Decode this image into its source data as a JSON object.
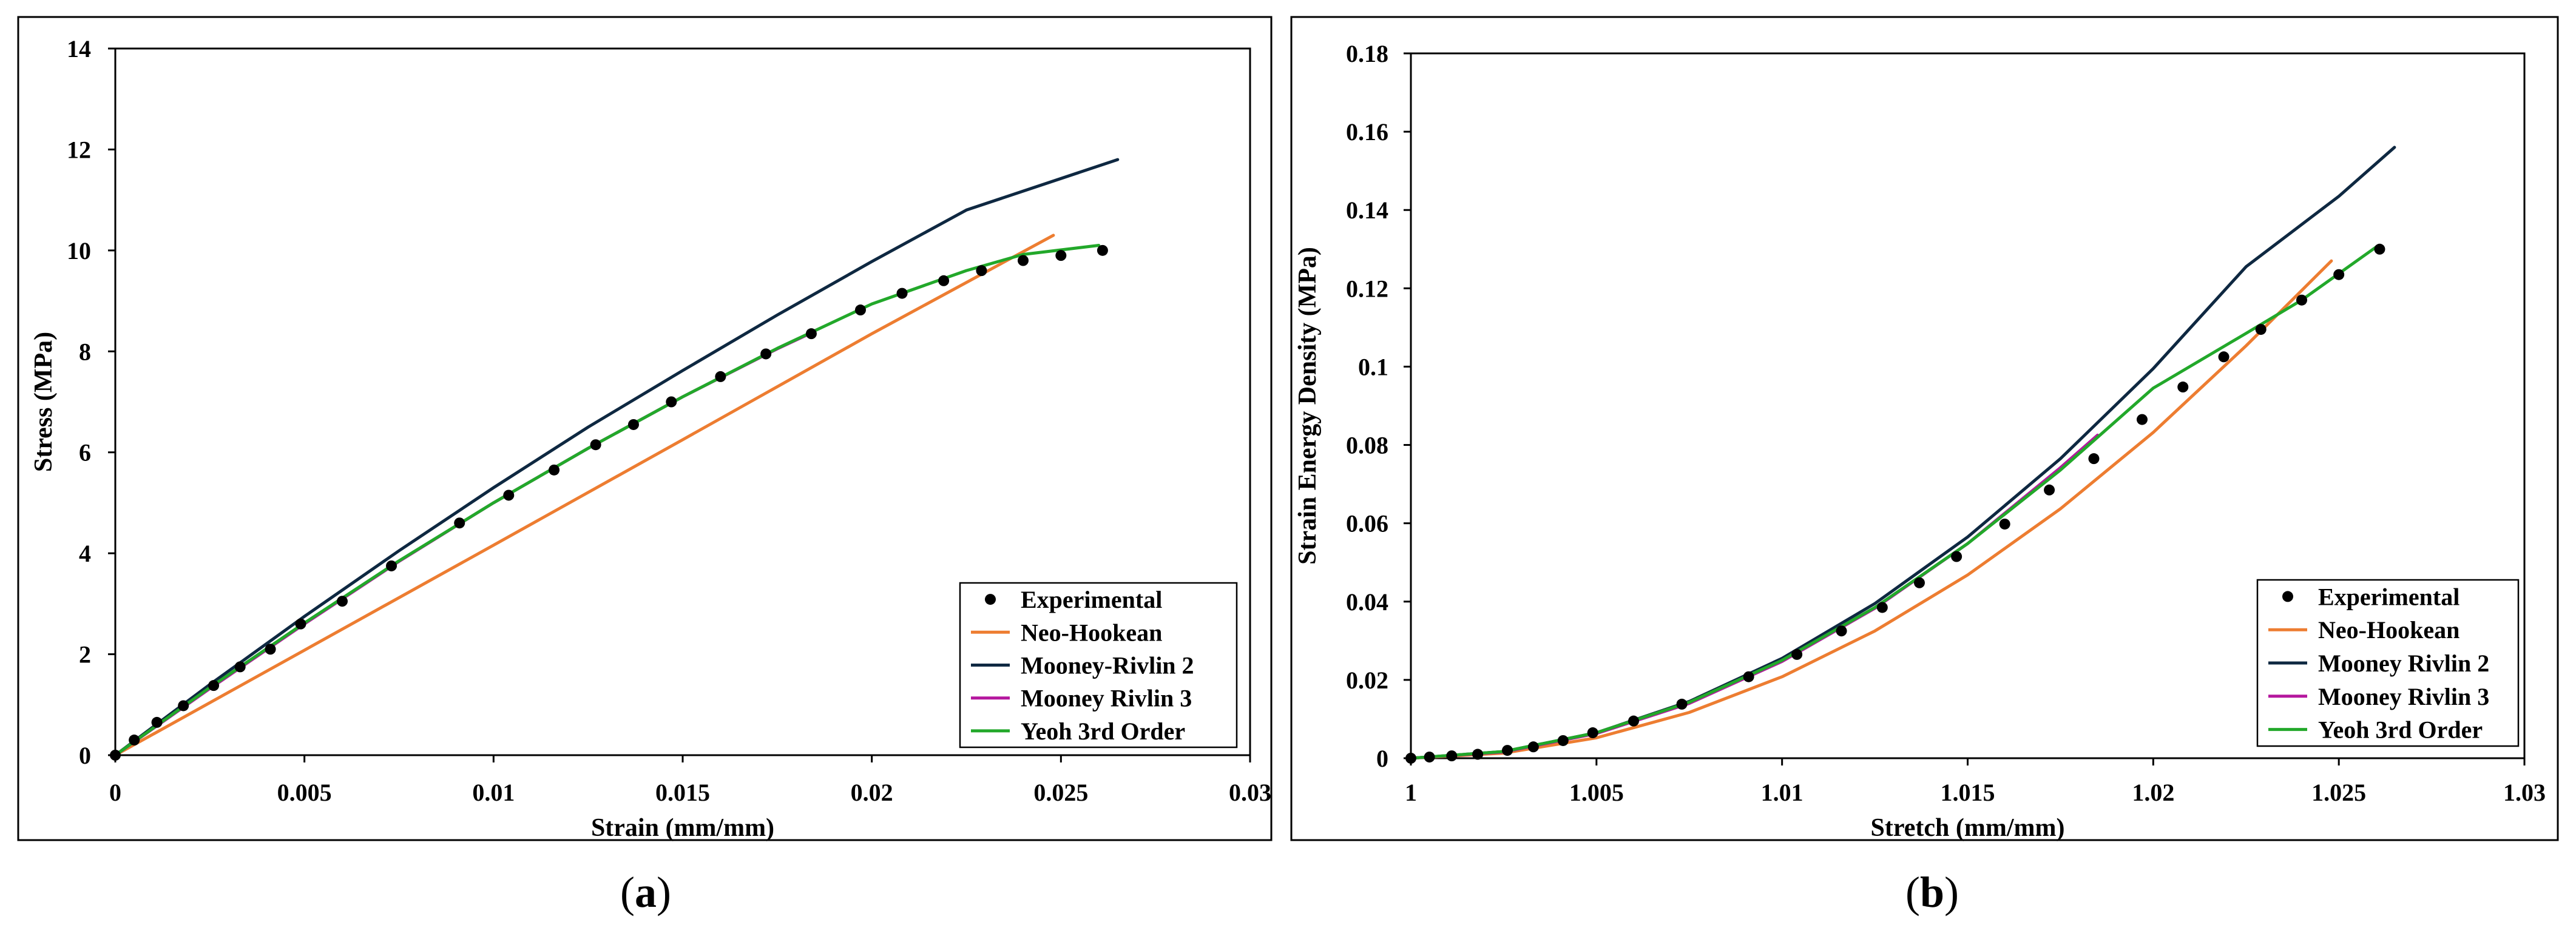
{
  "colors": {
    "experimental": "#000000",
    "neo_hookean": "#ED7D31",
    "mooney_rivlin_2": "#0E2841",
    "mooney_rivlin_3": "#B5179E",
    "yeoh": "#22A82A",
    "frame": "#000000"
  },
  "panel_labels": [
    "a",
    "b"
  ],
  "chart_data": [
    {
      "type": "line",
      "panel": "a",
      "title": "",
      "xlabel": "Strain (mm/mm)",
      "ylabel": "Stress (MPa)",
      "xlim": [
        0,
        0.03
      ],
      "ylim": [
        0,
        14
      ],
      "xticks": [
        0,
        0.005,
        0.01,
        0.015,
        0.02,
        0.025,
        0.03
      ],
      "xtick_labels": [
        "0",
        "0.005",
        "0.01",
        "0.015",
        "0.02",
        "0.025",
        "0.03"
      ],
      "yticks": [
        0,
        2,
        4,
        6,
        8,
        10,
        12,
        14
      ],
      "ytick_labels": [
        "0",
        "2",
        "4",
        "6",
        "8",
        "10",
        "12",
        "14"
      ],
      "legend_position": "bottom-right",
      "legend": [
        "Experimental",
        "Neo-Hookean",
        "Mooney-Rivlin 2",
        "Mooney Rivlin 3",
        "Yeoh 3rd Order"
      ],
      "series": [
        {
          "name": "Experimental",
          "kind": "scatter",
          "color_key": "experimental",
          "x": [
            0,
            0.0005,
            0.0011,
            0.0018,
            0.0026,
            0.0033,
            0.0041,
            0.0049,
            0.006,
            0.0073,
            0.0091,
            0.0104,
            0.0116,
            0.0127,
            0.0137,
            0.0147,
            0.016,
            0.0172,
            0.0184,
            0.0197,
            0.0208,
            0.0219,
            0.0229,
            0.024,
            0.025,
            0.0261
          ],
          "y": [
            0,
            0.3,
            0.65,
            0.98,
            1.38,
            1.75,
            2.1,
            2.6,
            3.05,
            3.75,
            4.6,
            5.15,
            5.65,
            6.15,
            6.55,
            7.0,
            7.5,
            7.95,
            8.35,
            8.82,
            9.15,
            9.4,
            9.6,
            9.8,
            9.9,
            10.0
          ]
        },
        {
          "name": "Neo-Hookean",
          "kind": "line",
          "color_key": "neo_hookean",
          "x": [
            0,
            0.005,
            0.01,
            0.015,
            0.02,
            0.0248
          ],
          "y": [
            0,
            2.08,
            4.16,
            6.25,
            8.35,
            10.3
          ]
        },
        {
          "name": "Mooney-Rivlin 2",
          "kind": "line",
          "color_key": "mooney_rivlin_2",
          "x": [
            0,
            0.0025,
            0.005,
            0.0075,
            0.01,
            0.0125,
            0.015,
            0.0175,
            0.02,
            0.0225,
            0.0265
          ],
          "y": [
            0,
            1.4,
            2.75,
            4.05,
            5.3,
            6.5,
            7.62,
            8.72,
            9.78,
            10.8,
            11.8
          ]
        },
        {
          "name": "Mooney Rivlin 3",
          "kind": "line",
          "color_key": "mooney_rivlin_3",
          "x": [
            0,
            0.0025,
            0.005,
            0.0075,
            0.01,
            0.0125,
            0.015,
            0.0175,
            0.0185
          ],
          "y": [
            0,
            1.32,
            2.6,
            3.84,
            5.0,
            6.08,
            7.1,
            8.05,
            8.4
          ]
        },
        {
          "name": "Yeoh 3rd Order",
          "kind": "line",
          "color_key": "yeoh",
          "x": [
            0,
            0.0025,
            0.005,
            0.0075,
            0.01,
            0.0125,
            0.015,
            0.0175,
            0.02,
            0.0225,
            0.024,
            0.026
          ],
          "y": [
            0,
            1.34,
            2.62,
            3.85,
            5.0,
            6.08,
            7.1,
            8.06,
            8.94,
            9.6,
            9.92,
            10.1
          ]
        }
      ]
    },
    {
      "type": "line",
      "panel": "b",
      "title": "",
      "xlabel": "Stretch (mm/mm)",
      "ylabel": "Strain Energy Density (MPa)",
      "xlim": [
        1,
        1.03
      ],
      "ylim": [
        0,
        0.18
      ],
      "xticks": [
        1,
        1.005,
        1.01,
        1.015,
        1.02,
        1.025,
        1.03
      ],
      "xtick_labels": [
        "1",
        "1.005",
        "1.01",
        "1.015",
        "1.02",
        "1.025",
        "1.03"
      ],
      "yticks": [
        0,
        0.02,
        0.04,
        0.06,
        0.08,
        0.1,
        0.12,
        0.14,
        0.16,
        0.18
      ],
      "ytick_labels": [
        "0",
        "0.02",
        "0.04",
        "0.06",
        "0.08",
        "0.1",
        "0.12",
        "0.14",
        "0.16",
        "0.18"
      ],
      "legend_position": "bottom-right",
      "legend": [
        "Experimental",
        "Neo-Hookean",
        "Mooney Rivlin 2",
        "Mooney Rivlin 3",
        "Yeoh 3rd Order"
      ],
      "series": [
        {
          "name": "Experimental",
          "kind": "scatter",
          "color_key": "experimental",
          "x": [
            1,
            1.0005,
            1.0011,
            1.0018,
            1.0026,
            1.0033,
            1.0041,
            1.0049,
            1.006,
            1.0073,
            1.0091,
            1.0104,
            1.0116,
            1.0127,
            1.0137,
            1.0147,
            1.016,
            1.0172,
            1.0184,
            1.0197,
            1.0208,
            1.0219,
            1.0229,
            1.024,
            1.025,
            1.0261
          ],
          "y": [
            0,
            0.0003,
            0.0006,
            0.001,
            0.002,
            0.0029,
            0.0045,
            0.0065,
            0.0095,
            0.0138,
            0.0208,
            0.0265,
            0.0325,
            0.0385,
            0.0448,
            0.0515,
            0.0598,
            0.0685,
            0.0765,
            0.0865,
            0.0948,
            0.1025,
            0.1095,
            0.117,
            0.1235,
            0.13
          ]
        },
        {
          "name": "Neo-Hookean",
          "kind": "line",
          "color_key": "neo_hookean",
          "x": [
            1,
            1.0025,
            1.005,
            1.0075,
            1.01,
            1.0125,
            1.015,
            1.0175,
            1.02,
            1.0225,
            1.0248
          ],
          "y": [
            0,
            0.0013,
            0.0052,
            0.0117,
            0.0208,
            0.0325,
            0.0468,
            0.0637,
            0.0832,
            0.1053,
            0.127
          ]
        },
        {
          "name": "Mooney Rivlin 2",
          "kind": "line",
          "color_key": "mooney_rivlin_2",
          "x": [
            1,
            1.0025,
            1.005,
            1.0075,
            1.01,
            1.0125,
            1.015,
            1.0175,
            1.02,
            1.0225,
            1.025,
            1.0265
          ],
          "y": [
            0,
            0.0017,
            0.0065,
            0.0145,
            0.0255,
            0.0395,
            0.0565,
            0.0765,
            0.0995,
            0.1255,
            0.1435,
            0.156
          ]
        },
        {
          "name": "Mooney Rivlin 3",
          "kind": "line",
          "color_key": "mooney_rivlin_3",
          "x": [
            1,
            1.0025,
            1.005,
            1.0075,
            1.01,
            1.0125,
            1.015,
            1.0175,
            1.0185
          ],
          "y": [
            0,
            0.0016,
            0.0063,
            0.014,
            0.0247,
            0.0383,
            0.0548,
            0.0742,
            0.0825
          ]
        },
        {
          "name": "Yeoh 3rd Order",
          "kind": "line",
          "color_key": "yeoh",
          "x": [
            1,
            1.0025,
            1.005,
            1.0075,
            1.01,
            1.0125,
            1.015,
            1.0175,
            1.02,
            1.0225,
            1.024,
            1.026
          ],
          "y": [
            0,
            0.0017,
            0.0065,
            0.0143,
            0.025,
            0.0385,
            0.0548,
            0.0736,
            0.0945,
            0.1085,
            0.117,
            0.1305
          ]
        }
      ]
    }
  ]
}
